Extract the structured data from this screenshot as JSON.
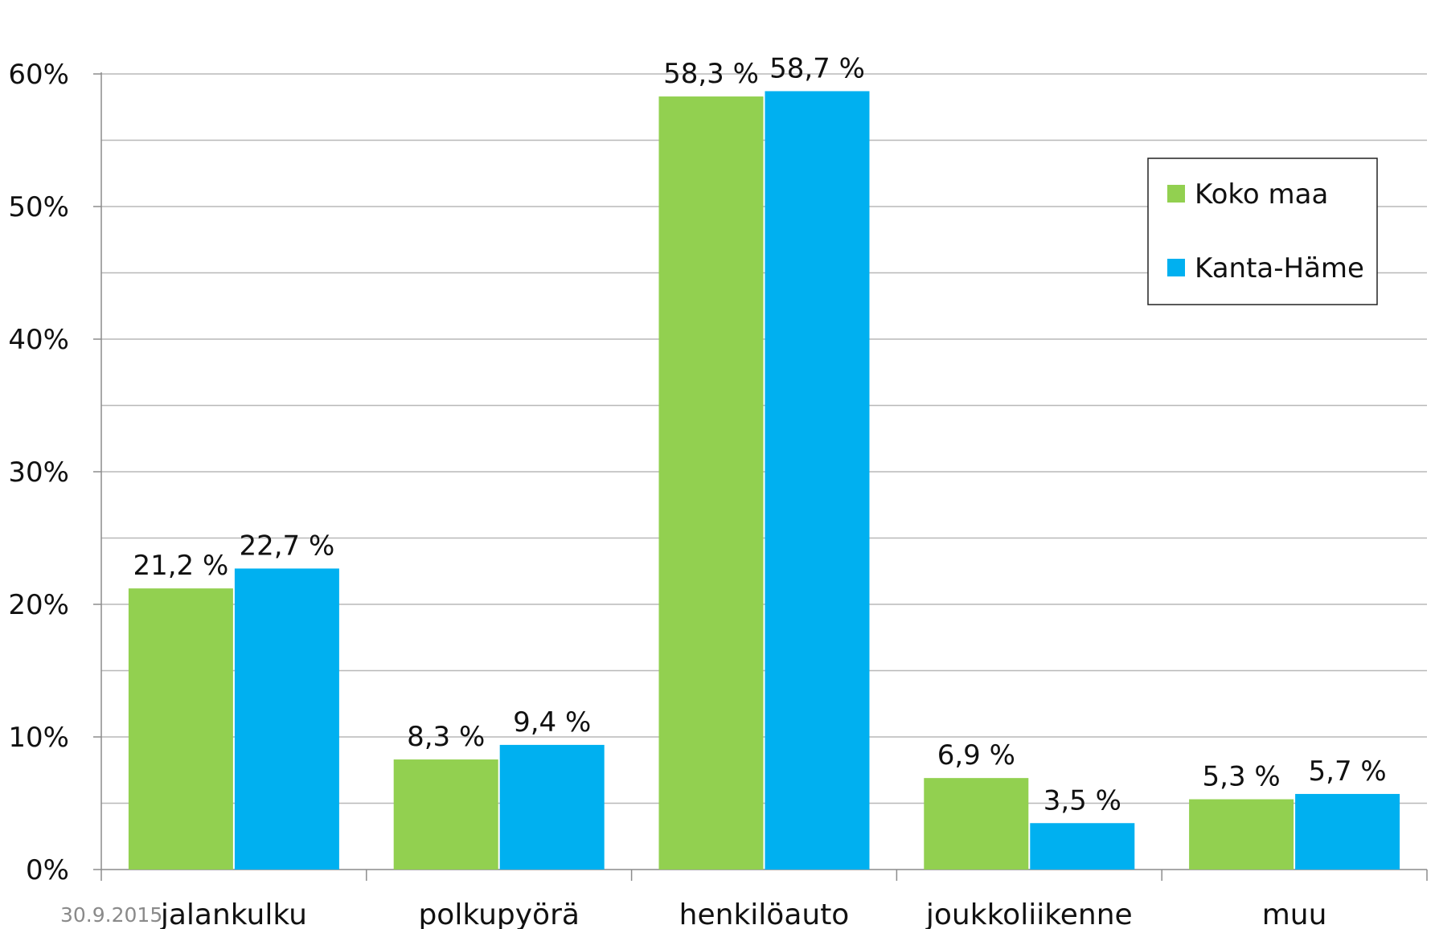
{
  "footer": {
    "date": "30.9.2015"
  },
  "chart_data": {
    "type": "bar",
    "categories": [
      "jalankulku",
      "polkupyörä",
      "henkilöauto",
      "joukkoliikenne",
      "muu"
    ],
    "series": [
      {
        "name": "Koko maa",
        "color": "#92d050",
        "values": [
          21.2,
          8.3,
          58.3,
          6.9,
          5.3
        ],
        "labels": [
          "21,2 %",
          "8,3 %",
          "58,3 %",
          "6,9 %",
          "5,3 %"
        ]
      },
      {
        "name": "Kanta-Häme",
        "color": "#00b0f0",
        "values": [
          22.7,
          9.4,
          58.7,
          3.5,
          5.7
        ],
        "labels": [
          "22,7 %",
          "9,4 %",
          "58,7 %",
          "3,5 %",
          "5,7 %"
        ]
      }
    ],
    "yticks": [
      0,
      10,
      20,
      30,
      40,
      50,
      60
    ],
    "ytick_labels": [
      "0%",
      "10%",
      "20%",
      "30%",
      "40%",
      "50%",
      "60%"
    ],
    "ylim": [
      0,
      60
    ],
    "minor_gridlines": true,
    "legend_position": "right",
    "title": "",
    "xlabel": "",
    "ylabel": ""
  }
}
